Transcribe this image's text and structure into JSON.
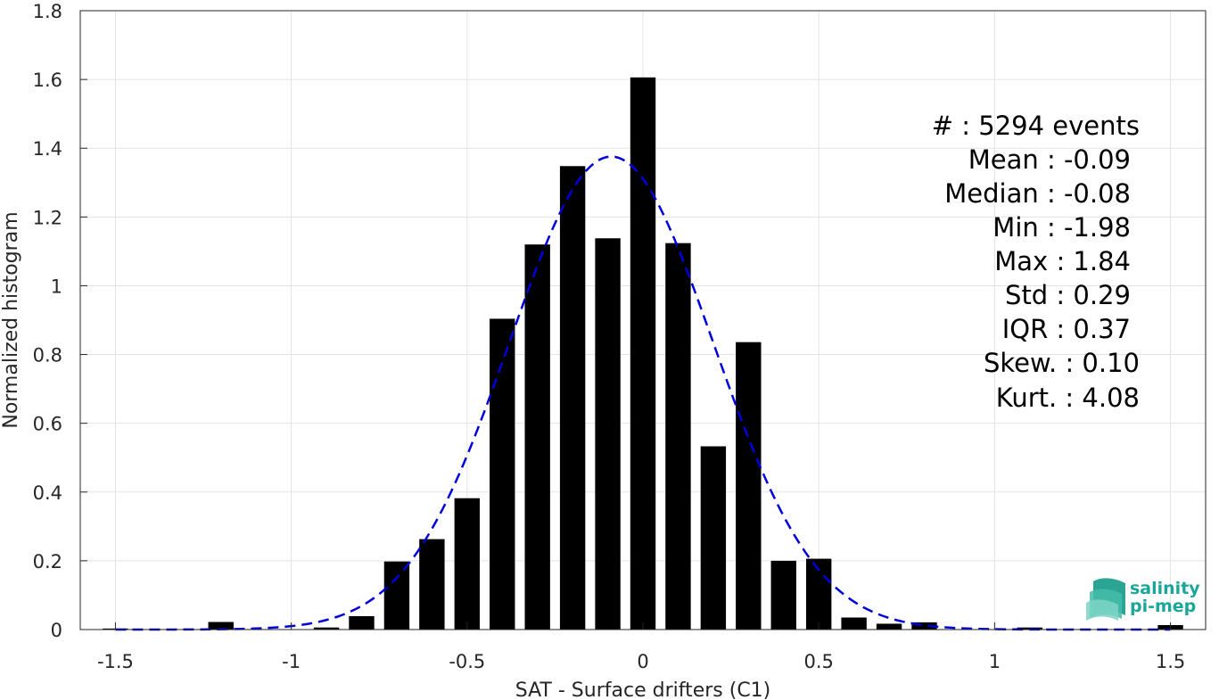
{
  "chart_data": {
    "type": "bar",
    "xlabel": "SAT - Surface drifters (C1)",
    "ylabel": "Normalized histogram",
    "xlim": [
      -1.6,
      1.6
    ],
    "ylim": [
      0,
      1.8
    ],
    "xticks": [
      -1.5,
      -1,
      -0.5,
      0,
      0.5,
      1,
      1.5
    ],
    "xtick_labels": [
      "-1.5",
      "-1",
      "-0.5",
      "0",
      "0.5",
      "1",
      "1.5"
    ],
    "yticks": [
      0,
      0.2,
      0.4,
      0.6,
      0.8,
      1,
      1.2,
      1.4,
      1.6,
      1.8
    ],
    "ytick_labels": [
      "0",
      "0.2",
      "0.4",
      "0.6",
      "0.8",
      "1",
      "1.2",
      "1.4",
      "1.6",
      "1.8"
    ],
    "grid": true,
    "bin_width": 0.1,
    "bar_color": "#000000",
    "bins": [
      {
        "x": -1.5,
        "y": 0.003
      },
      {
        "x": -1.4,
        "y": 0.0
      },
      {
        "x": -1.3,
        "y": 0.0
      },
      {
        "x": -1.2,
        "y": 0.022
      },
      {
        "x": -1.1,
        "y": 0.0
      },
      {
        "x": -1.0,
        "y": 0.0
      },
      {
        "x": -0.9,
        "y": 0.006
      },
      {
        "x": -0.8,
        "y": 0.039
      },
      {
        "x": -0.7,
        "y": 0.198
      },
      {
        "x": -0.6,
        "y": 0.263
      },
      {
        "x": -0.5,
        "y": 0.382
      },
      {
        "x": -0.4,
        "y": 0.904
      },
      {
        "x": -0.3,
        "y": 1.12
      },
      {
        "x": -0.2,
        "y": 1.348
      },
      {
        "x": -0.1,
        "y": 1.138
      },
      {
        "x": 0.0,
        "y": 1.606
      },
      {
        "x": 0.1,
        "y": 1.124
      },
      {
        "x": 0.2,
        "y": 0.533
      },
      {
        "x": 0.3,
        "y": 0.836
      },
      {
        "x": 0.4,
        "y": 0.2
      },
      {
        "x": 0.5,
        "y": 0.206
      },
      {
        "x": 0.6,
        "y": 0.035
      },
      {
        "x": 0.7,
        "y": 0.017
      },
      {
        "x": 0.8,
        "y": 0.021
      },
      {
        "x": 0.9,
        "y": 0.0
      },
      {
        "x": 1.0,
        "y": 0.0
      },
      {
        "x": 1.1,
        "y": 0.006
      },
      {
        "x": 1.2,
        "y": 0.0
      },
      {
        "x": 1.3,
        "y": 0.0
      },
      {
        "x": 1.4,
        "y": 0.0
      },
      {
        "x": 1.5,
        "y": 0.013
      }
    ],
    "fit_curve": {
      "style": "dashed",
      "color": "#0000dd",
      "mean": -0.09,
      "std": 0.29,
      "x_range": [
        -1.5,
        1.5
      ]
    },
    "annotations": [
      "#  : 5294 events",
      "Mean : -0.09",
      "Median : -0.08",
      "Min : -1.98",
      "Max : 1.84",
      "Std : 0.29",
      "IQR : 0.37",
      "Skew. : 0.10",
      "Kurt. : 4.08"
    ]
  },
  "logo": {
    "line1": "salinity",
    "line2": "pi-mep",
    "color": "#1aa79a"
  }
}
